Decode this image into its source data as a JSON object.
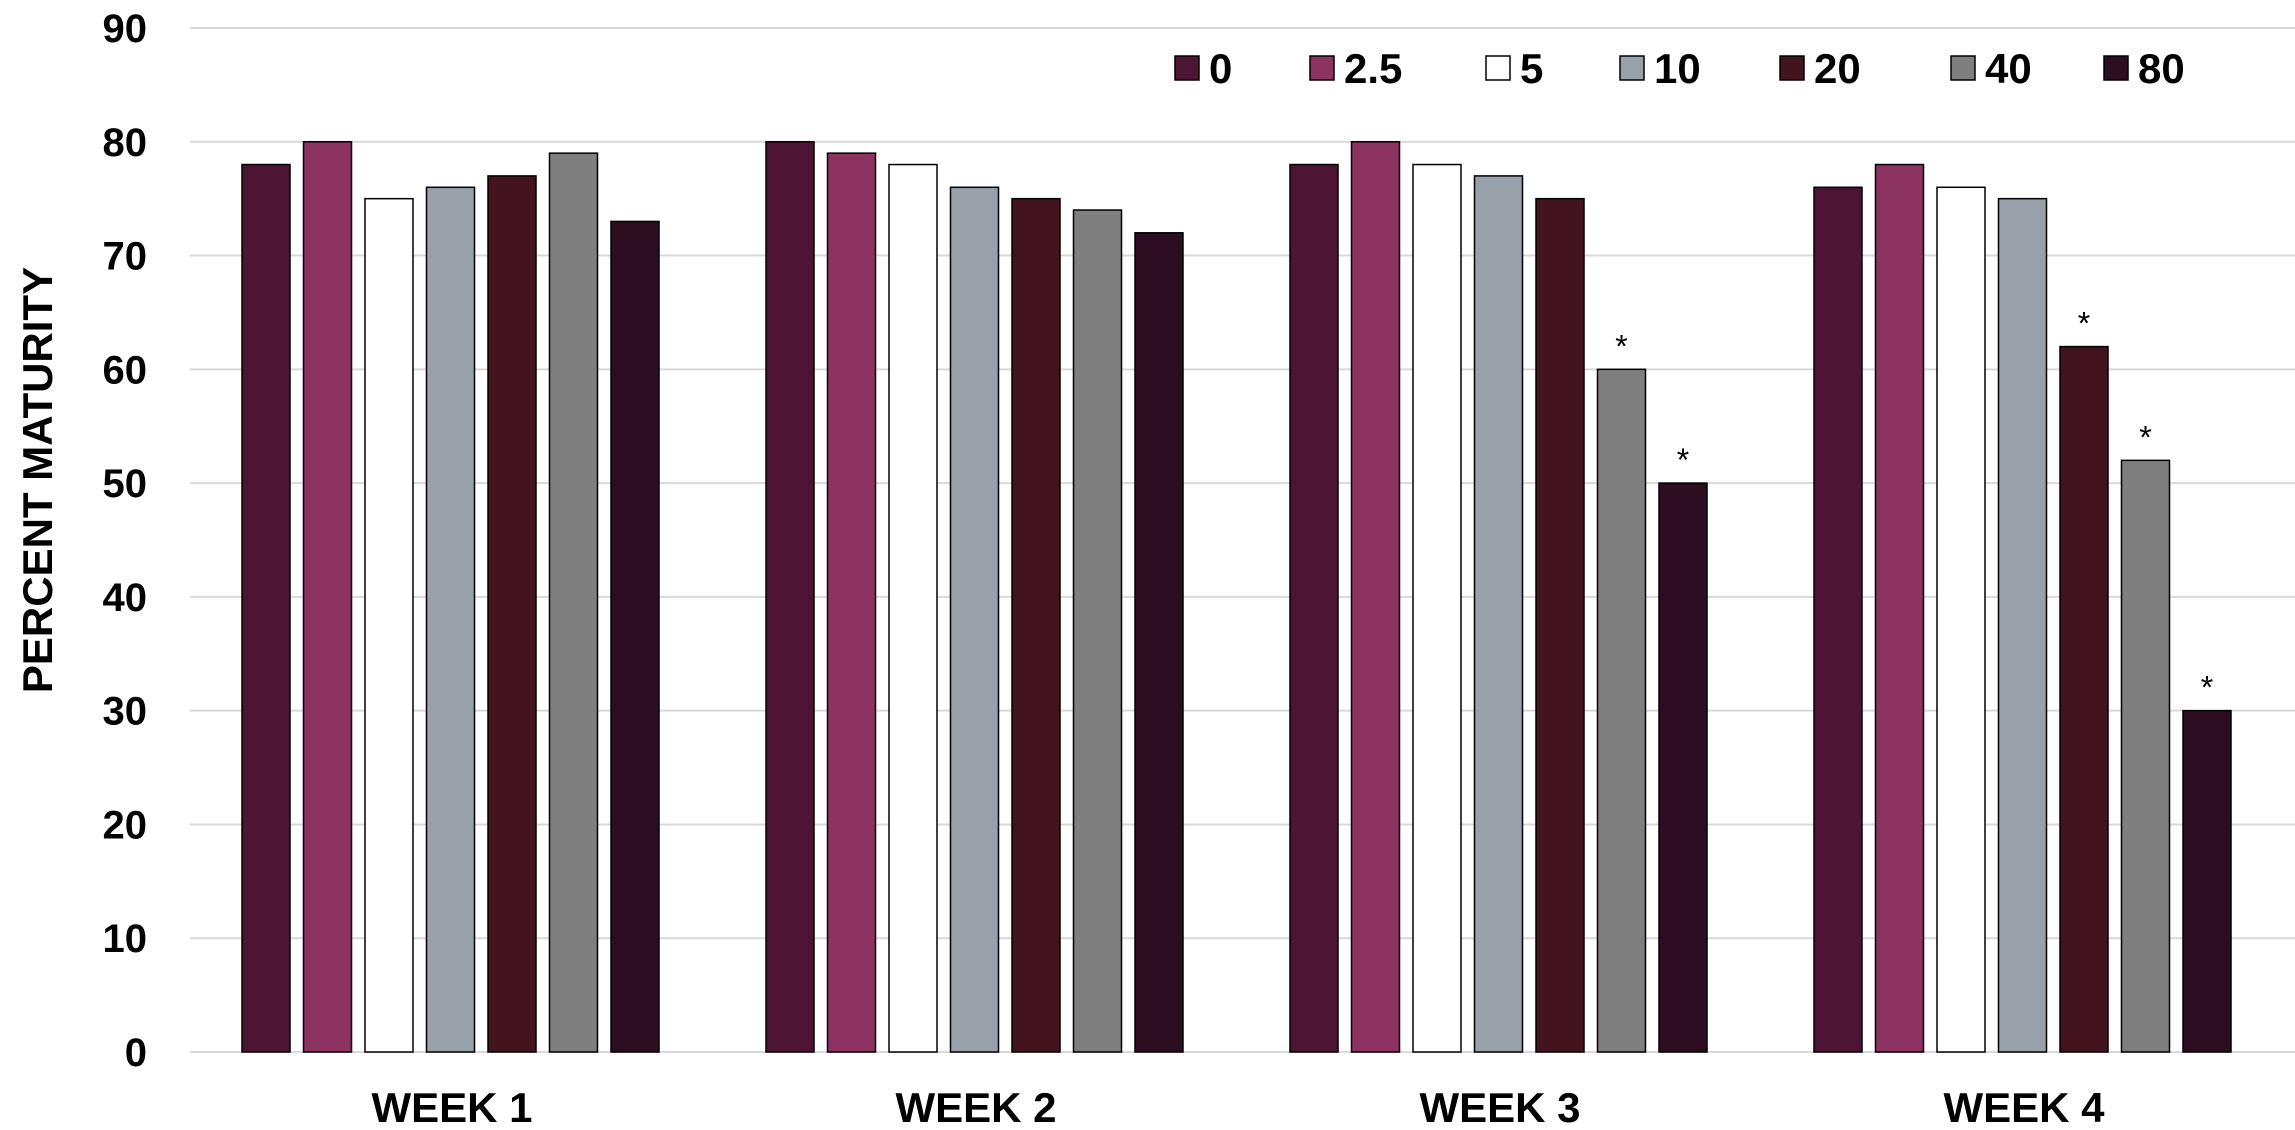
{
  "chart_data": {
    "type": "bar",
    "ylabel": "PERCENT MATURITY",
    "xlabel": "",
    "ylim": [
      0,
      90
    ],
    "yticks": [
      0,
      10,
      20,
      30,
      40,
      50,
      60,
      70,
      80,
      90
    ],
    "grid": true,
    "legend_position": "top-right",
    "categories": [
      "WEEK 1",
      "WEEK 2",
      "WEEK 3",
      "WEEK 4"
    ],
    "series": [
      {
        "name": "0",
        "color": "#4d1533",
        "values": [
          78,
          80,
          78,
          76
        ]
      },
      {
        "name": "2.5",
        "color": "#8c3362",
        "values": [
          80,
          79,
          80,
          78
        ]
      },
      {
        "name": "5",
        "color": "#ffffff",
        "values": [
          75,
          78,
          78,
          76
        ]
      },
      {
        "name": "10",
        "color": "#98a1aa",
        "values": [
          76,
          76,
          77,
          75
        ]
      },
      {
        "name": "20",
        "color": "#43141f",
        "values": [
          77,
          75,
          75,
          62
        ]
      },
      {
        "name": "40",
        "color": "#7f7f7f",
        "values": [
          79,
          74,
          60,
          52
        ]
      },
      {
        "name": "80",
        "color": "#2c0e20",
        "values": [
          73,
          72,
          50,
          30
        ]
      }
    ],
    "annotations": [
      {
        "category": "WEEK 3",
        "series": "40",
        "text": "*"
      },
      {
        "category": "WEEK 3",
        "series": "80",
        "text": "*"
      },
      {
        "category": "WEEK 4",
        "series": "20",
        "text": "*"
      },
      {
        "category": "WEEK 4",
        "series": "40",
        "text": "*"
      },
      {
        "category": "WEEK 4",
        "series": "80",
        "text": "*"
      }
    ]
  }
}
